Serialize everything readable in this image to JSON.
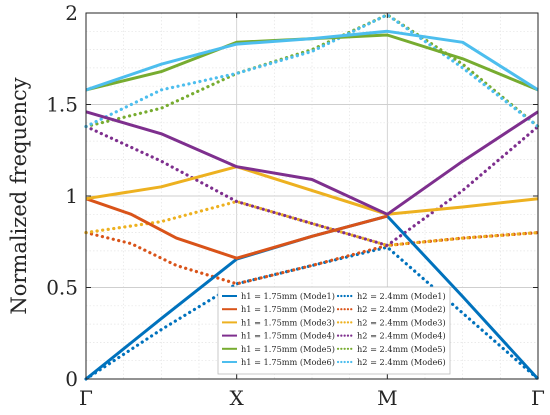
{
  "chart_data": {
    "type": "line",
    "title": "",
    "xlabel": "",
    "ylabel": "Normalized frequency",
    "x_ticks": [
      "Γ",
      "X",
      "M",
      "Γ"
    ],
    "y_ticks": [
      "0",
      "0.5",
      "1",
      "1.5",
      "2"
    ],
    "xlim": [
      0,
      3
    ],
    "ylim": [
      0,
      2
    ],
    "grid": true,
    "legend_position": "bottom-right",
    "series": [
      {
        "name": "h1 = 1.75mm (Mode1)",
        "color": "#0072BD",
        "style": "solid",
        "x": [
          0,
          0.5,
          1,
          1.5,
          2,
          2.5,
          3
        ],
        "y": [
          0,
          0.33,
          0.655,
          0.78,
          0.89,
          0.45,
          0
        ]
      },
      {
        "name": "h1 = 1.75mm (Mode2)",
        "color": "#D95319",
        "style": "solid",
        "x": [
          0,
          0.3,
          0.6,
          1,
          1.5,
          2
        ],
        "y": [
          0.985,
          0.9,
          0.77,
          0.66,
          0.78,
          0.89
        ]
      },
      {
        "name": "h1 = 1.75mm (Mode3)",
        "color": "#EDB120",
        "style": "solid",
        "x": [
          0,
          0.5,
          1,
          2,
          2.5,
          3
        ],
        "y": [
          0.985,
          1.05,
          1.16,
          0.9,
          0.94,
          0.985
        ]
      },
      {
        "name": "h1 = 1.75mm (Mode4)",
        "color": "#7E2F8E",
        "style": "solid",
        "x": [
          0,
          0.5,
          1,
          1.5,
          2,
          2.5,
          3
        ],
        "y": [
          1.46,
          1.34,
          1.16,
          1.09,
          0.9,
          1.19,
          1.46
        ]
      },
      {
        "name": "h1 = 1.75mm (Mode5)",
        "color": "#77AC30",
        "style": "solid",
        "x": [
          0,
          0.5,
          1,
          2,
          2.5,
          3
        ],
        "y": [
          1.58,
          1.68,
          1.84,
          1.88,
          1.75,
          1.58
        ]
      },
      {
        "name": "h1 = 1.75mm (Mode6)",
        "color": "#4DBEEE",
        "style": "solid",
        "x": [
          0,
          0.5,
          1,
          1.5,
          2,
          2.5,
          3
        ],
        "y": [
          1.58,
          1.72,
          1.83,
          1.86,
          1.9,
          1.84,
          1.58
        ]
      },
      {
        "name": "h2 = 2.4mm (Mode1)",
        "color": "#0072BD",
        "style": "dotted",
        "x": [
          0,
          0.5,
          1,
          1.5,
          2,
          2.5,
          3
        ],
        "y": [
          0,
          0.27,
          0.52,
          0.62,
          0.72,
          0.36,
          0
        ]
      },
      {
        "name": "h2 = 2.4mm (Mode2)",
        "color": "#D95319",
        "style": "dotted",
        "x": [
          0,
          0.3,
          0.6,
          1,
          1.5,
          2,
          2.5,
          3
        ],
        "y": [
          0.8,
          0.74,
          0.62,
          0.52,
          0.62,
          0.73,
          0.77,
          0.8
        ]
      },
      {
        "name": "h2 = 2.4mm (Mode3)",
        "color": "#EDB120",
        "style": "dotted",
        "x": [
          0,
          0.5,
          1,
          1.5,
          2,
          2.5,
          3
        ],
        "y": [
          0.8,
          0.86,
          0.97,
          0.85,
          0.73,
          0.77,
          0.8
        ]
      },
      {
        "name": "h2 = 2.4mm (Mode4)",
        "color": "#7E2F8E",
        "style": "dotted",
        "x": [
          0,
          0.5,
          1,
          1.5,
          2,
          2.5,
          3
        ],
        "y": [
          1.38,
          1.19,
          0.97,
          0.85,
          0.73,
          1.03,
          1.38
        ]
      },
      {
        "name": "h2 = 2.4mm (Mode5)",
        "color": "#77AC30",
        "style": "dotted",
        "x": [
          0,
          0.5,
          1,
          1.5,
          2,
          2.5,
          3
        ],
        "y": [
          1.38,
          1.48,
          1.67,
          1.8,
          1.99,
          1.72,
          1.38
        ]
      },
      {
        "name": "h2 = 2.4mm (Mode6)",
        "color": "#4DBEEE",
        "style": "dotted",
        "x": [
          0,
          0.5,
          1,
          1.5,
          2,
          2.5,
          3
        ],
        "y": [
          1.38,
          1.58,
          1.67,
          1.79,
          1.99,
          1.7,
          1.38
        ]
      }
    ]
  }
}
